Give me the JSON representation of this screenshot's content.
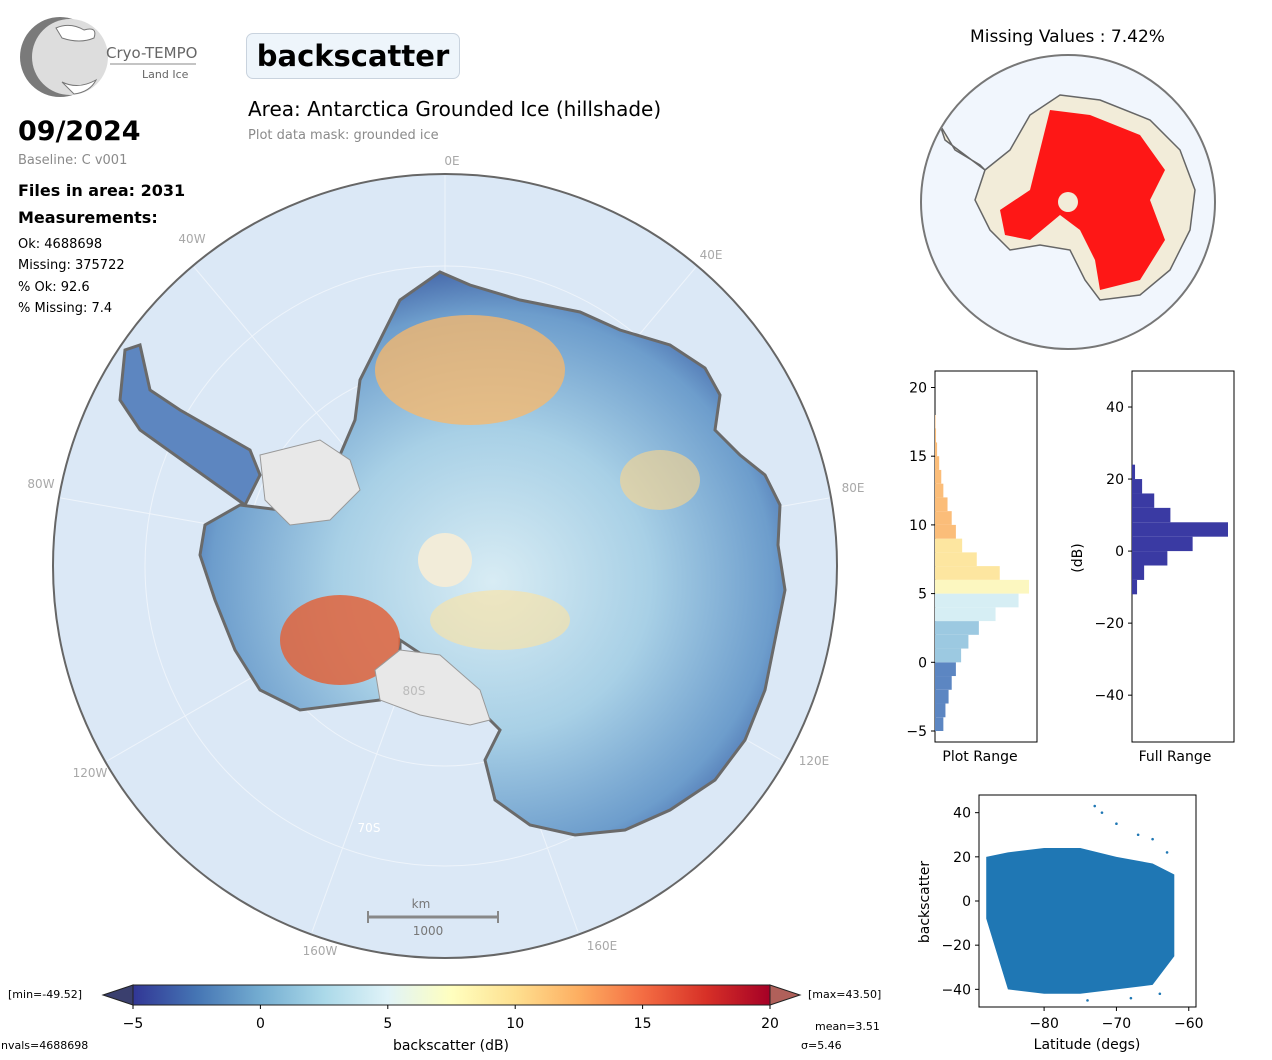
{
  "logo": {
    "name": "Cryo-TEMPO",
    "subtitle": "Land Ice"
  },
  "parameter": "backscatter",
  "date": "09/2024",
  "baseline": "Baseline: C v001",
  "files_in_area": "Files in area: 2031",
  "measurements_heading": "Measurements:",
  "stats": {
    "ok": "Ok: 4688698",
    "missing": "Missing: 375722",
    "pct_ok": "% Ok: 92.6",
    "pct_missing": "% Missing: 7.4"
  },
  "area_title": "Area: Antarctica Grounded Ice (hillshade)",
  "mask_label": "Plot data mask: grounded ice",
  "map": {
    "longitude_labels": [
      "0E",
      "40E",
      "80E",
      "120E",
      "160E",
      "160W",
      "120W",
      "80W",
      "40W"
    ],
    "latitude_labels": [
      "80S",
      "70S"
    ],
    "scale_bar": {
      "unit": "km",
      "value": "1000"
    }
  },
  "missing_values_title": "Missing Values : 7.42%",
  "colorbar": {
    "min_label": "[min=-49.52]",
    "max_label": "[max=43.50]",
    "ticks": [
      "−5",
      "0",
      "5",
      "10",
      "15",
      "20"
    ],
    "label": "backscatter (dB)",
    "range": [
      -5,
      20
    ],
    "colormap": "RdYlBu_r"
  },
  "summary": {
    "mean": "mean=3.51",
    "sigma": "σ=5.46",
    "nvals": "nvals=4688698"
  },
  "colors": {
    "missing": "#ff0000",
    "histogram_full": "#3a3aa3",
    "scatter": "#1f77b4",
    "ocean": "#d6e6f5",
    "land": "#f2ecd9"
  },
  "chart_data": [
    {
      "type": "bar",
      "orientation": "horizontal",
      "xlabel": "Plot Range",
      "ylabel": "",
      "ylim": [
        -5.8,
        21.2
      ],
      "yticks": [
        "−5",
        "0",
        "5",
        "10",
        "15",
        "20"
      ],
      "bins": [
        -5,
        -4,
        -3,
        -2,
        -1,
        0,
        1,
        2,
        3,
        4,
        5,
        6,
        7,
        8,
        9,
        10,
        11,
        12,
        13,
        14,
        15,
        16,
        17
      ],
      "values": [
        8,
        10,
        13,
        16,
        20,
        25,
        32,
        42,
        58,
        80,
        90,
        62,
        40,
        26,
        20,
        16,
        12,
        8,
        6,
        4,
        2,
        1,
        0.5
      ]
    },
    {
      "type": "bar",
      "orientation": "horizontal",
      "xlabel": "Full Range",
      "ylabel": "(dB)",
      "ylim": [
        -53,
        50
      ],
      "yticks": [
        "−40",
        "−20",
        "0",
        "20",
        "40"
      ],
      "bins": [
        -12,
        -8,
        -4,
        0,
        4,
        8,
        12,
        16,
        20
      ],
      "values": [
        5,
        12,
        35,
        60,
        95,
        38,
        22,
        10,
        3
      ]
    },
    {
      "type": "scatter",
      "xlabel": "Latitude (degs)",
      "ylabel": "backscatter",
      "xlim": [
        -89,
        -59
      ],
      "ylim": [
        -48,
        48
      ],
      "xticks": [
        "−80",
        "−70",
        "−60"
      ],
      "yticks": [
        "−40",
        "−20",
        "0",
        "20",
        "40"
      ],
      "envelope": {
        "x": [
          -88,
          -85,
          -80,
          -75,
          -70,
          -65,
          -62
        ],
        "upper": [
          20,
          22,
          24,
          24,
          20,
          17,
          12
        ],
        "lower": [
          -8,
          -40,
          -42,
          -42,
          -40,
          -38,
          -25
        ]
      },
      "outliers": [
        [
          -73,
          43
        ],
        [
          -72,
          40
        ],
        [
          -70,
          35
        ],
        [
          -67,
          30
        ],
        [
          -65,
          28
        ],
        [
          -63,
          22
        ],
        [
          -74,
          -45
        ],
        [
          -68,
          -44
        ],
        [
          -64,
          -42
        ]
      ]
    }
  ]
}
